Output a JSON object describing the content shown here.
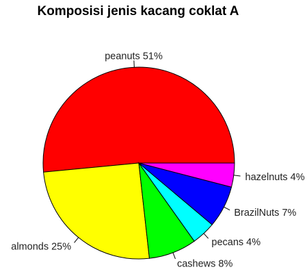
{
  "chart_data": {
    "type": "pie",
    "title": "Komposisi jenis kacang coklat A",
    "start_angle_deg": 0,
    "direction": "counterclockwise",
    "slices": [
      {
        "name": "peanuts",
        "value": 51,
        "label": "peanuts 51%",
        "color": "#ff0000"
      },
      {
        "name": "almonds",
        "value": 25,
        "label": "almonds 25%",
        "color": "#ffff00"
      },
      {
        "name": "cashews",
        "value": 8,
        "label": "cashews 8%",
        "color": "#00ff00"
      },
      {
        "name": "pecans",
        "value": 4,
        "label": "pecans 4%",
        "color": "#00ffff"
      },
      {
        "name": "BrazilNuts",
        "value": 7,
        "label": "BrazilNuts 7%",
        "color": "#0000ff"
      },
      {
        "name": "hazelnuts",
        "value": 4,
        "label": "hazelnuts 4%",
        "color": "#ff00ff"
      }
    ]
  }
}
